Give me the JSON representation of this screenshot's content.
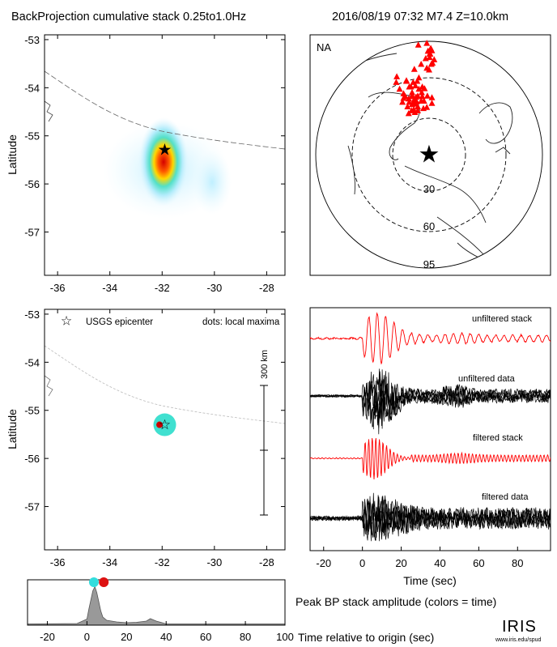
{
  "header": {
    "left_title": "BackProjection cumulative stack 0.25to1.0Hz",
    "right_title": "2016/08/19 07:32   M7.4   Z=10.0km"
  },
  "colors": {
    "station": "#ff0000",
    "epicenter_star": "#0000ff",
    "stack_trace": "#ff0000",
    "data_trace": "#000000",
    "maxima_dot": "#cc0000",
    "peak_fill": "#999999",
    "marker_early": "#33dddd",
    "marker_late": "#dd1111"
  },
  "icons": {
    "epicenter": "star-icon",
    "station": "triangle-icon",
    "maxima": "dot-icon"
  },
  "chart_data": [
    {
      "type": "heatmap",
      "title": "BackProjection cumulative stack 0.25to1.0Hz",
      "xlabel": "",
      "ylabel": "Latitude",
      "xlim": [
        -36.5,
        -27.3
      ],
      "ylim": [
        -57.9,
        -52.9
      ],
      "x_ticks": [
        "-36",
        "-34",
        "-32",
        "-30",
        "-28"
      ],
      "y_ticks": [
        "-53",
        "-54",
        "-55",
        "-56",
        "-57"
      ],
      "peak": {
        "lon": -31.95,
        "lat": -55.25
      },
      "epicenter": {
        "lon": -31.9,
        "lat": -55.3
      }
    },
    {
      "type": "scatter",
      "label": "NA",
      "ring_labels": [
        "30",
        "60",
        "95"
      ],
      "stations": [
        [
          -57,
          138
        ],
        [
          -40,
          131
        ],
        [
          -40,
          130
        ],
        [
          -28,
          128
        ],
        [
          -21,
          130
        ],
        [
          -32,
          120
        ],
        [
          -18,
          116
        ],
        [
          -42,
          103
        ],
        [
          -30,
          104
        ],
        [
          -20,
          104
        ],
        [
          -36,
          99
        ],
        [
          -28,
          92
        ],
        [
          -12,
          103
        ],
        [
          -27,
          80
        ],
        [
          -38,
          85
        ],
        [
          -31,
          78
        ],
        [
          -20,
          85
        ],
        [
          -20,
          78
        ],
        [
          -30,
          110
        ],
        [
          -26,
          98
        ],
        [
          -13,
          110
        ],
        [
          -47,
          93
        ],
        [
          -52,
          116
        ],
        [
          -35,
          120
        ],
        [
          -24,
          122
        ],
        [
          -10,
          82
        ],
        [
          -45,
          108
        ],
        [
          -14,
          95
        ],
        [
          -36,
          73
        ],
        [
          -25,
          75
        ],
        [
          -23,
          102
        ],
        [
          -29,
          103
        ],
        [
          -12,
          120
        ],
        [
          -18,
          136
        ],
        [
          -8,
          117
        ],
        [
          -3,
          104
        ],
        [
          5,
          91
        ],
        [
          -9,
          95
        ],
        [
          -4,
          84
        ],
        [
          5,
          101
        ],
        [
          -45,
          100
        ],
        [
          -58,
          128
        ],
        [
          -25,
          90
        ],
        [
          -35,
          93
        ],
        [
          -30,
          89
        ],
        [
          -22,
          94
        ],
        [
          4,
          160
        ],
        [
          -14,
          160
        ],
        [
          -4,
          153
        ],
        [
          -6,
          170
        ],
        [
          2,
          178
        ],
        [
          1,
          172
        ],
        [
          3,
          188
        ],
        [
          0,
          150
        ],
        [
          -26,
          151
        ],
        [
          5,
          184
        ],
        [
          6,
          162
        ],
        [
          -2,
          183
        ],
        [
          -4,
          197
        ],
        [
          9,
          168
        ],
        [
          1,
          178
        ],
        [
          -19,
          194
        ]
      ]
    },
    {
      "type": "scatter",
      "xlabel": "",
      "ylabel": "Latitude",
      "xlim": [
        -36.5,
        -27.3
      ],
      "ylim": [
        -57.9,
        -52.9
      ],
      "x_ticks": [
        "-36",
        "-34",
        "-32",
        "-30",
        "-28"
      ],
      "y_ticks": [
        "-53",
        "-54",
        "-55",
        "-56",
        "-57"
      ],
      "legend_epicenter": "USGS epicenter",
      "legend_dots": "dots: local maxima",
      "scale_label": "300 km",
      "maxima": [
        {
          "lon": -32.1,
          "lat": -55.3
        }
      ],
      "epicenter": {
        "lon": -31.9,
        "lat": -55.3
      }
    },
    {
      "type": "line",
      "xlabel": "Time (sec)",
      "xlim": [
        -27,
        97
      ],
      "x_ticks": [
        -20,
        0,
        20,
        40,
        60,
        80
      ],
      "series": [
        {
          "name": "unfiltered stack",
          "kind": "stack",
          "color": "#ff0000"
        },
        {
          "name": "unfiltered data",
          "kind": "data",
          "color": "#000000"
        },
        {
          "name": "filtered stack",
          "kind": "stack",
          "color": "#ff0000"
        },
        {
          "name": "filtered data",
          "kind": "data",
          "color": "#000000"
        }
      ]
    },
    {
      "type": "area",
      "title": "Peak BP stack amplitude (colors = time)",
      "xlabel": "Time relative to origin (sec)",
      "xlim": [
        -30,
        100
      ],
      "x_ticks": [
        -20,
        0,
        20,
        40,
        60,
        80,
        100
      ],
      "x": [
        -30,
        -5,
        0,
        1,
        3,
        4,
        5,
        7,
        8,
        10,
        15,
        20,
        25,
        30,
        32,
        35,
        38,
        40,
        50,
        60,
        100
      ],
      "y": [
        0.03,
        0.04,
        0.15,
        0.4,
        0.85,
        0.95,
        0.8,
        0.35,
        0.2,
        0.12,
        0.08,
        0.06,
        0.07,
        0.1,
        0.16,
        0.1,
        0.06,
        0.03,
        0.03,
        0.03,
        0.03
      ],
      "markers": [
        {
          "time": 3.5,
          "color": "#33dddd"
        },
        {
          "time": 8.5,
          "color": "#dd1111"
        }
      ]
    }
  ],
  "logo": {
    "text": "IRIS",
    "url_text": "www.iris.edu/spud"
  }
}
